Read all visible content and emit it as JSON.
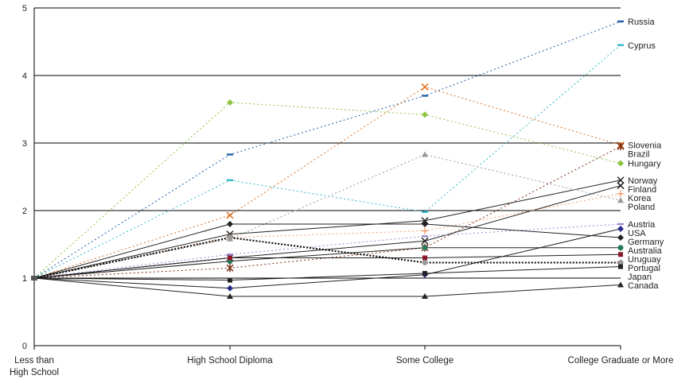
{
  "chart_data": {
    "type": "line",
    "categories": [
      "Less than\nHigh School",
      "High School Diploma",
      "Some College",
      "College Graduate or More"
    ],
    "ylim": [
      0,
      5
    ],
    "yticks": [
      "0",
      "1",
      "2",
      "3",
      "4",
      "5"
    ],
    "grid": true,
    "legend": "labels at end of lines",
    "series": [
      {
        "name": "Russia",
        "values": [
          1,
          2.83,
          3.7,
          4.8
        ],
        "color": "#1f5fa8",
        "dash": "2,3",
        "marker": "dash"
      },
      {
        "name": "Cyprus",
        "values": [
          1,
          2.45,
          1.98,
          4.45
        ],
        "color": "#33b8c8",
        "dash": "2,3",
        "marker": "dash"
      },
      {
        "name": "Slovenia",
        "values": [
          1,
          1.93,
          3.83,
          2.97
        ],
        "color": "#e07020",
        "dash": "2,3",
        "marker": "x"
      },
      {
        "name": "Brazil",
        "values": [
          1,
          1.15,
          1.45,
          2.95
        ],
        "color": "#7a2a10",
        "dash": "2,3",
        "marker": "star"
      },
      {
        "name": "Hungary",
        "values": [
          1,
          3.6,
          3.42,
          2.7
        ],
        "color": "#8ac43f",
        "dash": "2,3",
        "marker": "diamond"
      },
      {
        "name": "Norway",
        "values": [
          1,
          1.65,
          1.85,
          2.45
        ],
        "color": "#222222",
        "dash": "",
        "marker": "x"
      },
      {
        "name": "Finland",
        "values": [
          1,
          1.3,
          1.55,
          2.37
        ],
        "color": "#222222",
        "dash": "",
        "marker": "x"
      },
      {
        "name": "Korea",
        "values": [
          1,
          1.6,
          1.7,
          2.25
        ],
        "color": "#f0a070",
        "dash": "2,3",
        "marker": "plus"
      },
      {
        "name": "Poland",
        "values": [
          1,
          1.58,
          2.83,
          2.15
        ],
        "color": "#999999",
        "dash": "2,3",
        "marker": "triangle"
      },
      {
        "name": "Austria",
        "values": [
          1,
          1.35,
          1.62,
          1.8
        ],
        "color": "#9a8ad0",
        "dash": "2,3",
        "marker": "dash"
      },
      {
        "name": "USA",
        "values": [
          1,
          0.85,
          1.05,
          1.73
        ],
        "color": "#2a2a8a",
        "dash": "",
        "marker": "diamond"
      },
      {
        "name": "Germany",
        "values": [
          1,
          1.8,
          1.8,
          1.6
        ],
        "color": "#222222",
        "dash": "",
        "marker": "diamond"
      },
      {
        "name": "Australia",
        "values": [
          1,
          1.25,
          1.45,
          1.45
        ],
        "color": "#2a7a5a",
        "dash": "",
        "marker": "circle"
      },
      {
        "name": "Uruguay",
        "values": [
          1,
          1.3,
          1.3,
          1.35
        ],
        "color": "#8a1a2a",
        "dash": "",
        "marker": "square"
      },
      {
        "name": "Portugal",
        "values": [
          1,
          1.6,
          1.23,
          1.23
        ],
        "color": "#999999",
        "dash": "2,2",
        "marker": "circle"
      },
      {
        "name": "Japan",
        "values": [
          1,
          0.97,
          1.07,
          1.17
        ],
        "color": "#222222",
        "dash": "",
        "marker": "square"
      },
      {
        "name": "Canada",
        "values": [
          1,
          0.73,
          0.73,
          0.9
        ],
        "color": "#222222",
        "dash": "",
        "marker": "triangle"
      }
    ]
  }
}
